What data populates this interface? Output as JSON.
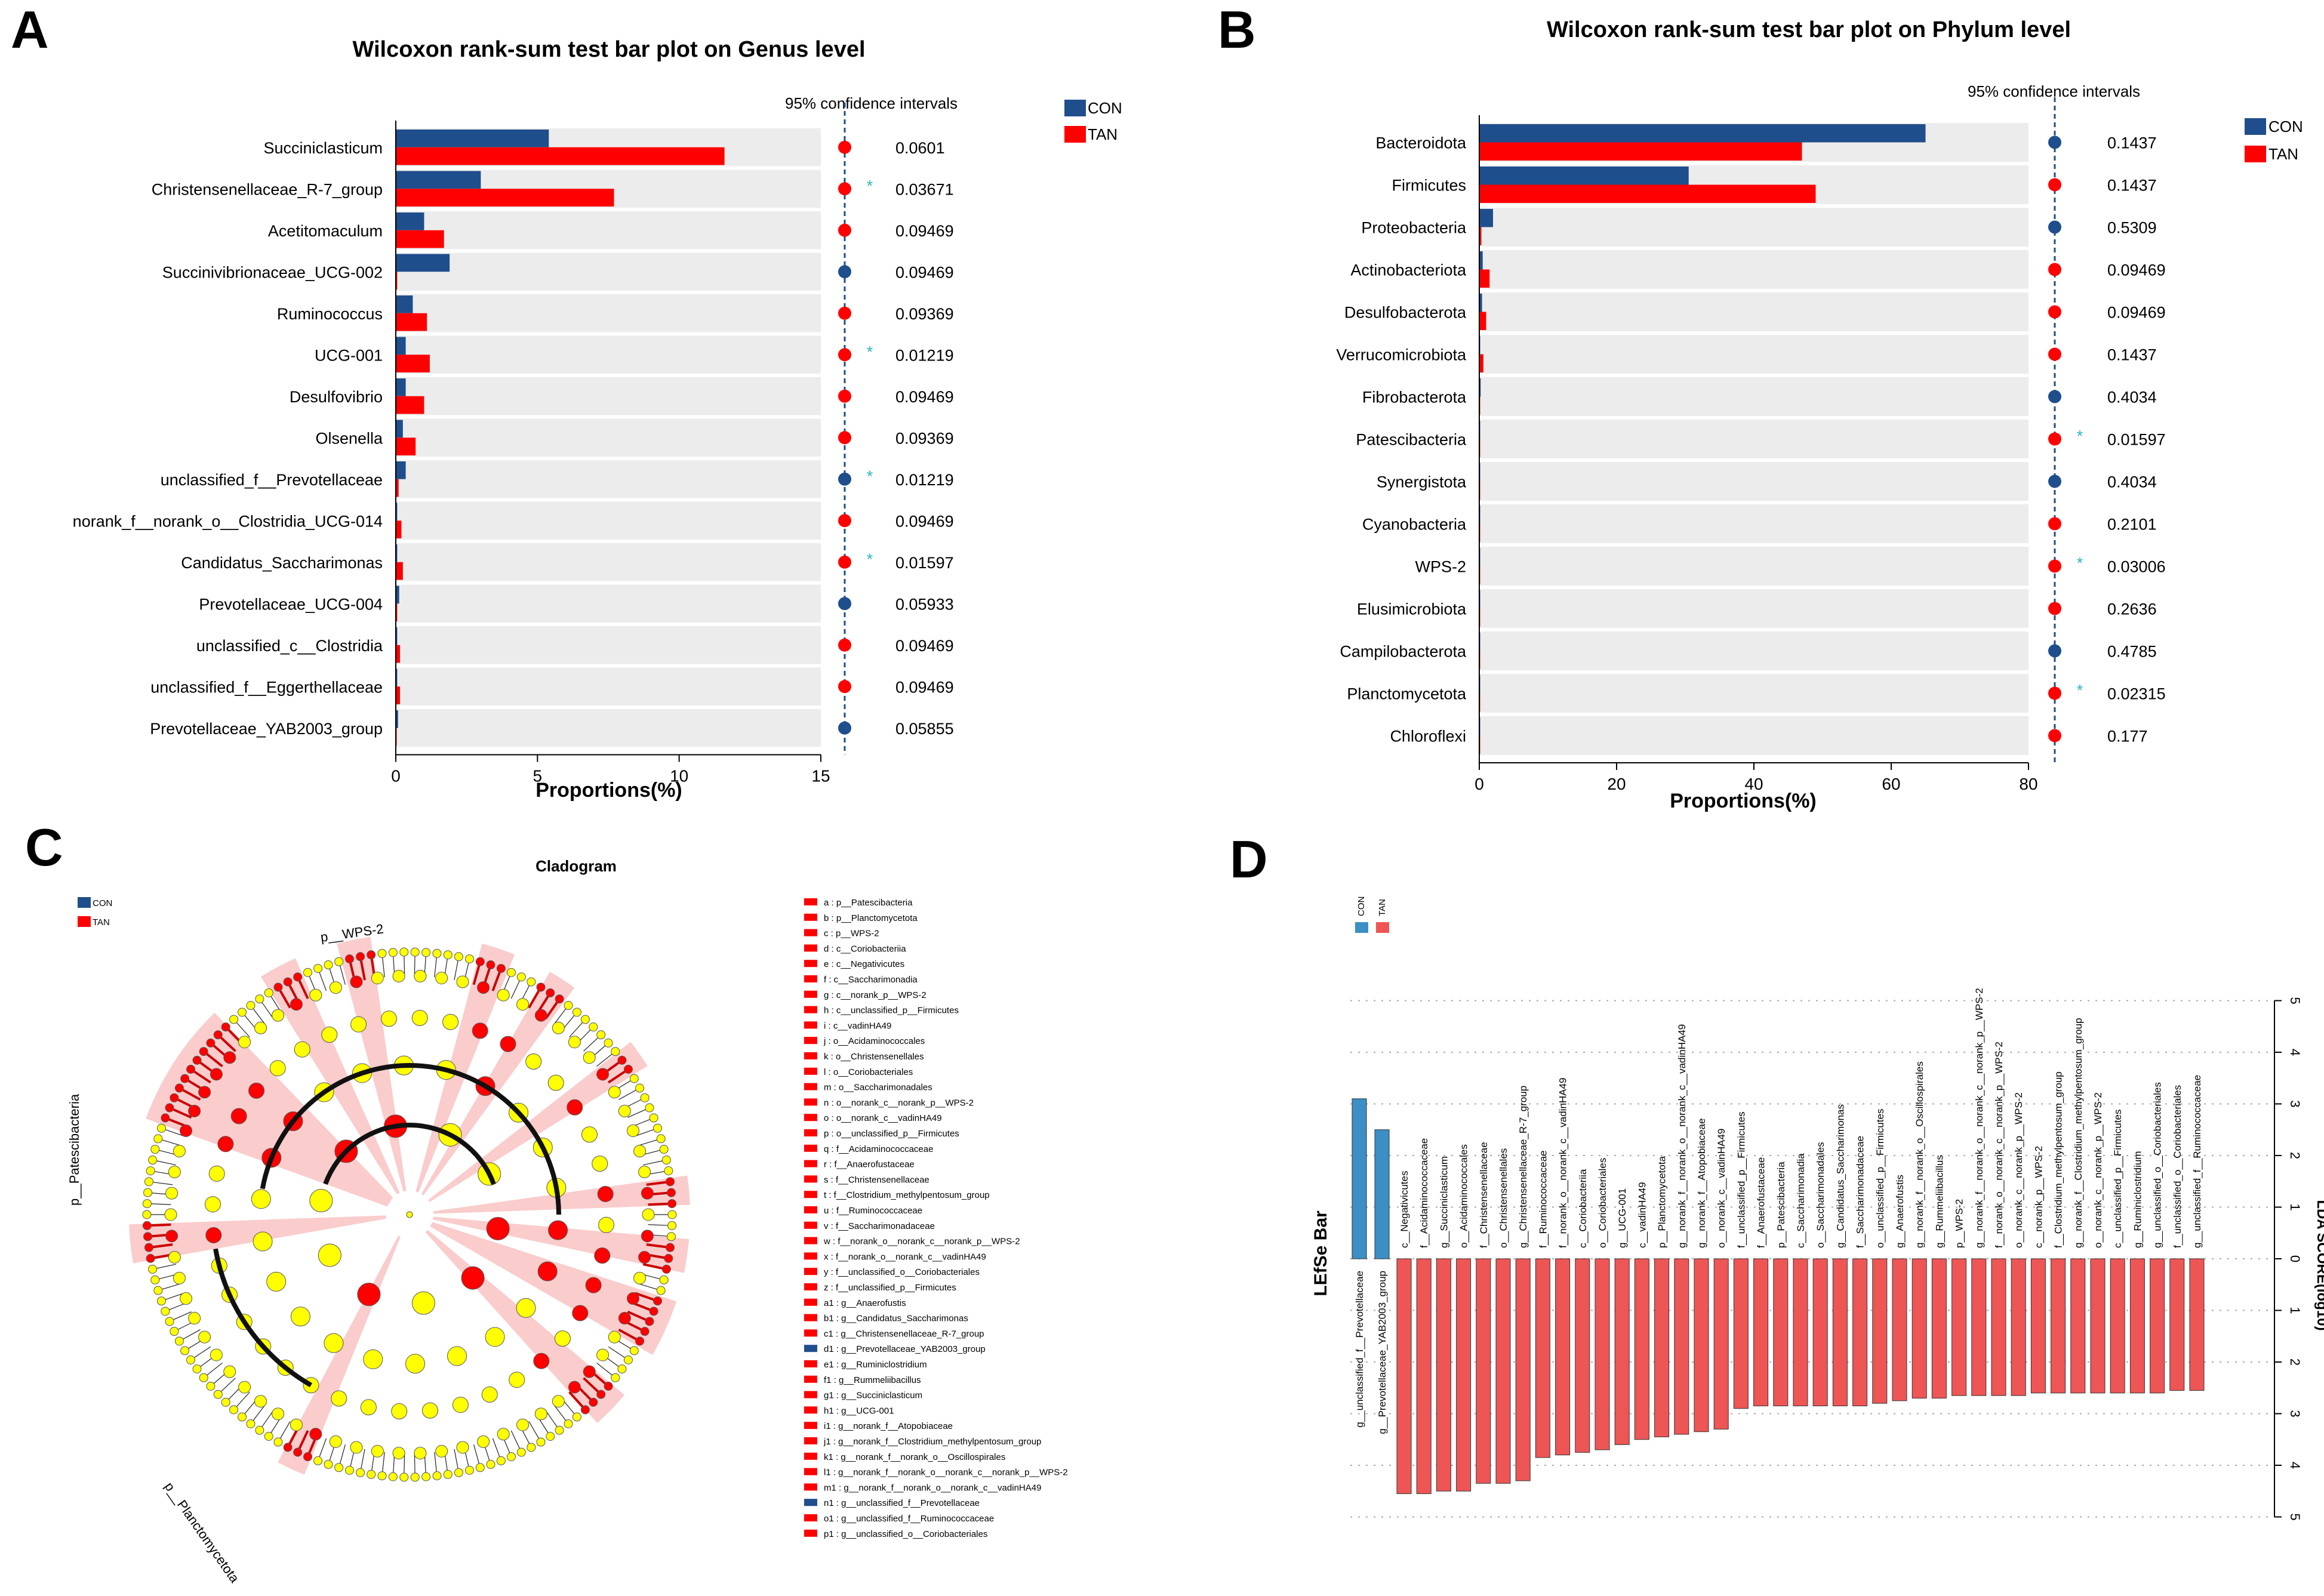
{
  "panels": {
    "a": "A",
    "b": "B",
    "c": "C",
    "d": "D"
  },
  "colors": {
    "con": "#1f4e8c",
    "tan": "#ff0000",
    "con_lefse": "#3b8fc4",
    "tan_lefse": "#ee5555",
    "rowbg": "#ececec",
    "node": "#ffff00"
  },
  "chart_data": [
    {
      "type": "bar",
      "title": "Wilcoxon rank-sum test bar plot on Genus level",
      "ci_label": "95% confidence intervals",
      "xlabel": "Proportions(%)",
      "xlim": [
        0,
        15
      ],
      "xticks": [
        "0",
        "5",
        "10",
        "15"
      ],
      "legend": [
        "CON",
        "TAN"
      ],
      "categories": [
        "Succiniclasticum",
        "Christensenellaceae_R-7_group",
        "Acetitomaculum",
        "Succinivibrionaceae_UCG-002",
        "Ruminococcus",
        "UCG-001",
        "Desulfovibrio",
        "Olsenella",
        "unclassified_f__Prevotellaceae",
        "norank_f__norank_o__Clostridia_UCG-014",
        "Candidatus_Saccharimonas",
        "Prevotellaceae_UCG-004",
        "unclassified_c__Clostridia",
        "unclassified_f__Eggerthellaceae",
        "Prevotellaceae_YAB2003_group"
      ],
      "series": [
        {
          "name": "CON",
          "values": [
            5.4,
            3.0,
            1.0,
            1.9,
            0.6,
            0.35,
            0.35,
            0.25,
            0.35,
            0.05,
            0.05,
            0.12,
            0.05,
            0.05,
            0.08
          ]
        },
        {
          "name": "TAN",
          "values": [
            11.6,
            7.7,
            1.7,
            0.05,
            1.1,
            1.2,
            1.0,
            0.7,
            0.1,
            0.2,
            0.25,
            0.05,
            0.15,
            0.15,
            0.02
          ]
        }
      ],
      "dot_group": [
        "TAN",
        "TAN",
        "TAN",
        "CON",
        "TAN",
        "TAN",
        "TAN",
        "TAN",
        "CON",
        "TAN",
        "TAN",
        "CON",
        "TAN",
        "TAN",
        "CON"
      ],
      "star": [
        false,
        true,
        false,
        false,
        false,
        true,
        false,
        false,
        true,
        false,
        true,
        false,
        false,
        false,
        false
      ],
      "star_mark": "*",
      "pvalues": [
        "0.0601",
        "0.03671",
        "0.09469",
        "0.09469",
        "0.09369",
        "0.01219",
        "0.09469",
        "0.09369",
        "0.01219",
        "0.09469",
        "0.01597",
        "0.05933",
        "0.09469",
        "0.09469",
        "0.05855"
      ]
    },
    {
      "type": "bar",
      "title": "Wilcoxon rank-sum test bar plot on Phylum level",
      "ci_label": "95% confidence intervals",
      "xlabel": "Proportions(%)",
      "xlim": [
        0,
        80
      ],
      "xticks": [
        "0",
        "20",
        "40",
        "60",
        "80"
      ],
      "legend": [
        "CON",
        "TAN"
      ],
      "categories": [
        "Bacteroidota",
        "Firmicutes",
        "Proteobacteria",
        "Actinobacteriota",
        "Desulfobacterota",
        "Verrucomicrobiota",
        "Fibrobacterota",
        "Patescibacteria",
        "Synergistota",
        "Cyanobacteria",
        "WPS-2",
        "Elusimicrobiota",
        "Campilobacterota",
        "Planctomycetota",
        "Chloroflexi"
      ],
      "series": [
        {
          "name": "CON",
          "values": [
            65,
            30.5,
            2.0,
            0.5,
            0.4,
            0.1,
            0.2,
            0.05,
            0.05,
            0.05,
            0.02,
            0.05,
            0.05,
            0.02,
            0.02
          ]
        },
        {
          "name": "TAN",
          "values": [
            47,
            49,
            0.3,
            1.5,
            1.0,
            0.6,
            0.05,
            0.1,
            0.02,
            0.05,
            0.05,
            0.05,
            0.02,
            0.05,
            0.05
          ]
        }
      ],
      "dot_group": [
        "CON",
        "TAN",
        "CON",
        "TAN",
        "TAN",
        "TAN",
        "CON",
        "TAN",
        "CON",
        "TAN",
        "TAN",
        "TAN",
        "CON",
        "TAN",
        "TAN"
      ],
      "star": [
        false,
        false,
        false,
        false,
        false,
        false,
        false,
        true,
        false,
        false,
        true,
        false,
        false,
        true,
        false
      ],
      "star_mark": "*",
      "pvalues": [
        "0.1437",
        "0.1437",
        "0.5309",
        "0.09469",
        "0.09469",
        "0.1437",
        "0.4034",
        "0.01597",
        "0.4034",
        "0.2101",
        "0.03006",
        "0.2636",
        "0.4785",
        "0.02315",
        "0.177"
      ]
    },
    {
      "type": "other",
      "title": "Cladogram",
      "legend": [
        "CON",
        "TAN"
      ],
      "outer_labels": [
        "p__WPS-2",
        "p__Patescibacteria",
        "p__Planctomycetota"
      ],
      "clade_letters": [
        "a",
        "b",
        "c",
        "d",
        "e",
        "f",
        "g",
        "h",
        "i",
        "j",
        "k",
        "l",
        "m",
        "n",
        "o",
        "p",
        "q",
        "r",
        "s",
        "t",
        "u",
        "v",
        "w",
        "x",
        "y",
        "z",
        "a1",
        "b1",
        "c1",
        "d1",
        "e1",
        "f1",
        "g1",
        "h1",
        "i1",
        "j1",
        "k1",
        "l1",
        "m1",
        "n1",
        "o1",
        "p1"
      ],
      "key": [
        {
          "label": "a : p__Patescibacteria",
          "group": "TAN"
        },
        {
          "label": "b : p__Planctomycetota",
          "group": "TAN"
        },
        {
          "label": "c : p__WPS-2",
          "group": "TAN"
        },
        {
          "label": "d : c__Coriobacteriia",
          "group": "TAN"
        },
        {
          "label": "e : c__Negativicutes",
          "group": "TAN"
        },
        {
          "label": "f : c__Saccharimonadia",
          "group": "TAN"
        },
        {
          "label": "g : c__norank_p__WPS-2",
          "group": "TAN"
        },
        {
          "label": "h : c__unclassified_p__Firmicutes",
          "group": "TAN"
        },
        {
          "label": "i : c__vadinHA49",
          "group": "TAN"
        },
        {
          "label": "j : o__Acidaminococcales",
          "group": "TAN"
        },
        {
          "label": "k : o__Christensenellales",
          "group": "TAN"
        },
        {
          "label": "l : o__Coriobacteriales",
          "group": "TAN"
        },
        {
          "label": "m : o__Saccharimonadales",
          "group": "TAN"
        },
        {
          "label": "n : o__norank_c__norank_p__WPS-2",
          "group": "TAN"
        },
        {
          "label": "o : o__norank_c__vadinHA49",
          "group": "TAN"
        },
        {
          "label": "p : o__unclassified_p__Firmicutes",
          "group": "TAN"
        },
        {
          "label": "q : f__Acidaminococcaceae",
          "group": "TAN"
        },
        {
          "label": "r : f__Anaerofustaceae",
          "group": "TAN"
        },
        {
          "label": "s : f__Christensenellaceae",
          "group": "TAN"
        },
        {
          "label": "t : f__Clostridium_methylpentosum_group",
          "group": "TAN"
        },
        {
          "label": "u : f__Ruminococcaceae",
          "group": "TAN"
        },
        {
          "label": "v : f__Saccharimonadaceae",
          "group": "TAN"
        },
        {
          "label": "w : f__norank_o__norank_c__norank_p__WPS-2",
          "group": "TAN"
        },
        {
          "label": "x : f__norank_o__norank_c__vadinHA49",
          "group": "TAN"
        },
        {
          "label": "y : f__unclassified_o__Coriobacteriales",
          "group": "TAN"
        },
        {
          "label": "z : f__unclassified_p__Firmicutes",
          "group": "TAN"
        },
        {
          "label": "a1 : g__Anaerofustis",
          "group": "TAN"
        },
        {
          "label": "b1 : g__Candidatus_Saccharimonas",
          "group": "TAN"
        },
        {
          "label": "c1 : g__Christensenellaceae_R-7_group",
          "group": "TAN"
        },
        {
          "label": "d1 : g__Prevotellaceae_YAB2003_group",
          "group": "CON"
        },
        {
          "label": "e1 : g__Ruminiclostridium",
          "group": "TAN"
        },
        {
          "label": "f1 : g__Rummeliibacillus",
          "group": "TAN"
        },
        {
          "label": "g1 : g__Succiniclasticum",
          "group": "TAN"
        },
        {
          "label": "h1 : g__UCG-001",
          "group": "TAN"
        },
        {
          "label": "i1 : g__norank_f__Atopobiaceae",
          "group": "TAN"
        },
        {
          "label": "j1 : g__norank_f__Clostridium_methylpentosum_group",
          "group": "TAN"
        },
        {
          "label": "k1 : g__norank_f__norank_o__Oscillospirales",
          "group": "TAN"
        },
        {
          "label": "l1 : g__norank_f__norank_o__norank_c__norank_p__WPS-2",
          "group": "TAN"
        },
        {
          "label": "m1 : g__norank_f__norank_o__norank_c__vadinHA49",
          "group": "TAN"
        },
        {
          "label": "n1 : g__unclassified_f__Prevotellaceae",
          "group": "CON"
        },
        {
          "label": "o1 : g__unclassified_f__Ruminococcaceae",
          "group": "TAN"
        },
        {
          "label": "p1 : g__unclassified_o__Coriobacteriales",
          "group": "TAN"
        }
      ]
    },
    {
      "type": "bar",
      "title": "LEfSe Bar",
      "ylabel": "LDA SCORE(log10)",
      "ylim": [
        -5,
        5
      ],
      "yticks": [
        "5",
        "4",
        "3",
        "2",
        "1",
        "0",
        "1",
        "2",
        "3",
        "4",
        "5"
      ],
      "legend": [
        "CON",
        "TAN"
      ],
      "con_categories": [
        "g__unclassified_f__Prevotellaceae",
        "g__Prevotellaceae_YAB2003_group"
      ],
      "con_values": [
        3.1,
        2.5
      ],
      "tan_categories": [
        "c__Negativicutes",
        "f__Acidaminococcaceae",
        "g__Succiniclasticum",
        "o__Acidaminococcales",
        "f__Christensenellaceae",
        "o__Christensenellales",
        "g__Christensenellaceae_R-7_group",
        "f__Ruminococcaceae",
        "f__norank_o__norank_c__vadinHA49",
        "c__Coriobacteriia",
        "o__Coriobacteriales",
        "g__UCG-001",
        "c__vadinHA49",
        "p__Planctomycetota",
        "g__norank_f__norank_o__norank_c__vadinHA49",
        "g__norank_f__Atopobiaceae",
        "o__norank_c__vadinHA49",
        "f__unclassified_p__Firmicutes",
        "f__Anaerofustaceae",
        "p__Patescibacteria",
        "c__Saccharimonadia",
        "o__Saccharimonadales",
        "g__Candidatus_Saccharimonas",
        "f__Saccharimonadaceae",
        "o__unclassified_p__Firmicutes",
        "g__Anaerofustis",
        "g__norank_f__norank_o__Oscillospirales",
        "g__Rummeliibacillus",
        "p__WPS-2",
        "g__norank_f__norank_o__norank_c__norank_p__WPS-2",
        "f__norank_o__norank_c__norank_p__WPS-2",
        "o__norank_c__norank_p__WPS-2",
        "c__norank_p__WPS-2",
        "f__Clostridium_methylpentosum_group",
        "g__norank_f__Clostridium_methylpentosum_group",
        "o__norank_c__norank_p__WPS-2",
        "c__unclassified_p__Firmicutes",
        "g__Ruminiclostridium",
        "g__unclassified_o__Coriobacteriales",
        "f__unclassified_o__Coriobacteriales",
        "g__unclassified_f__Ruminococcaceae"
      ],
      "tan_values": [
        4.55,
        4.55,
        4.5,
        4.5,
        4.35,
        4.35,
        4.3,
        3.85,
        3.8,
        3.75,
        3.7,
        3.6,
        3.5,
        3.45,
        3.4,
        3.35,
        3.3,
        2.9,
        2.85,
        2.85,
        2.85,
        2.85,
        2.85,
        2.85,
        2.8,
        2.75,
        2.7,
        2.7,
        2.65,
        2.65,
        2.65,
        2.65,
        2.6,
        2.6,
        2.6,
        2.6,
        2.6,
        2.6,
        2.6,
        2.55,
        2.55
      ]
    }
  ]
}
